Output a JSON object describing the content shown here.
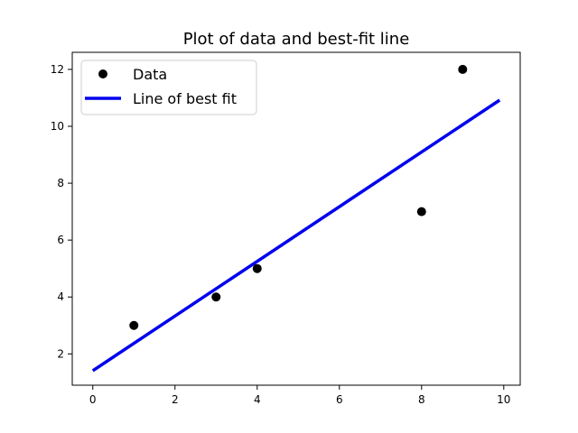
{
  "chart_data": {
    "type": "scatter",
    "title": "Plot of data and best-fit line",
    "xlabel": "",
    "ylabel": "",
    "xlim": [
      -0.5,
      10.4
    ],
    "ylim": [
      0.9,
      12.6
    ],
    "x_ticks": [
      0,
      2,
      4,
      6,
      8,
      10
    ],
    "y_ticks": [
      2,
      4,
      6,
      8,
      10,
      12
    ],
    "grid": false,
    "legend_position": "upper-left",
    "series": [
      {
        "name": "Data",
        "kind": "scatter",
        "color": "#000000",
        "x": [
          1,
          3,
          4,
          8,
          9
        ],
        "y": [
          3,
          4,
          5,
          7,
          12
        ]
      },
      {
        "name": "Line of best fit",
        "kind": "line",
        "color": "#0000ee",
        "x": [
          0,
          9.9
        ],
        "y": [
          1.41,
          10.92
        ]
      }
    ]
  }
}
